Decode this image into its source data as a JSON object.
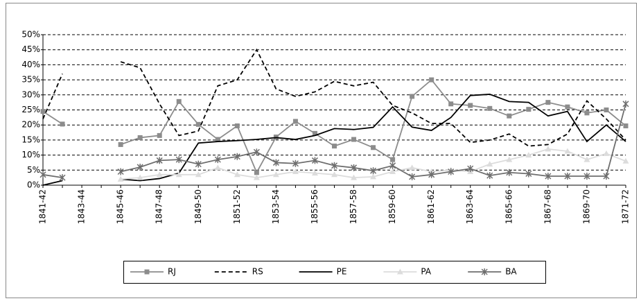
{
  "chart_data": {
    "type": "line",
    "categories": [
      "1841-42",
      null,
      "1843-44",
      null,
      "1845-46",
      null,
      "1847-48",
      null,
      "1849-50",
      null,
      "1851-52",
      null,
      "1853-54",
      null,
      "1855-56",
      null,
      "1857-58",
      null,
      "1859-60",
      null,
      "1861-62",
      null,
      "1863-64",
      null,
      "1865-66",
      null,
      "1867-68",
      null,
      "1869-70",
      null,
      "1871-72"
    ],
    "ylim": [
      0,
      50
    ],
    "yticks": [
      {
        "value": 0,
        "label": "0%"
      },
      {
        "value": 5,
        "label": "5%"
      },
      {
        "value": 10,
        "label": "10%"
      },
      {
        "value": 15,
        "label": "15%"
      },
      {
        "value": 20,
        "label": "20%"
      },
      {
        "value": 25,
        "label": "25%"
      },
      {
        "value": 30,
        "label": "30%"
      },
      {
        "value": 35,
        "label": "35%"
      },
      {
        "value": 40,
        "label": "40%"
      },
      {
        "value": 45,
        "label": "45%"
      },
      {
        "value": 50,
        "label": "50%"
      }
    ],
    "grid": true,
    "legend": "bottom",
    "series": [
      {
        "name": "RJ",
        "color": "#8c8c8c",
        "marker": "square",
        "line_style": "solid",
        "values": [
          24.5,
          20.3,
          null,
          null,
          13.5,
          15.8,
          16.5,
          27.8,
          20.2,
          15.2,
          19.7,
          4.2,
          16.0,
          21.2,
          17.2,
          13.0,
          15.2,
          12.5,
          8.5,
          29.5,
          35.0,
          27.0,
          26.5,
          25.5,
          23.0,
          25.2,
          27.5,
          26.0,
          24.0,
          25.0,
          19.7
        ]
      },
      {
        "name": "RS",
        "color": "#000000",
        "marker": "none",
        "line_style": "dashed",
        "values": [
          22.0,
          37.0,
          null,
          null,
          41.0,
          39.0,
          27.0,
          16.5,
          18.0,
          33.0,
          35.0,
          45.0,
          32.0,
          29.5,
          31.0,
          34.5,
          33.0,
          34.2,
          26.5,
          24.0,
          20.5,
          20.5,
          14.2,
          15.0,
          17.0,
          13.0,
          13.5,
          17.0,
          28.0,
          22.0,
          15.0
        ]
      },
      {
        "name": "PE",
        "color": "#000000",
        "marker": "none",
        "line_style": "solid",
        "values": [
          0.0,
          1.5,
          null,
          null,
          2.0,
          1.5,
          2.2,
          4.0,
          14.0,
          14.5,
          14.8,
          15.2,
          15.8,
          15.2,
          16.5,
          18.8,
          18.5,
          19.2,
          26.0,
          19.3,
          18.2,
          22.5,
          29.8,
          30.2,
          27.8,
          27.5,
          23.0,
          24.5,
          14.5,
          20.0,
          14.5
        ]
      },
      {
        "name": "PA",
        "color": "#dcdcdc",
        "marker": "triangle",
        "line_style": "solid",
        "values": [
          null,
          null,
          null,
          null,
          2.0,
          2.5,
          3.5,
          3.5,
          3.5,
          5.8,
          3.5,
          2.5,
          3.5,
          4.5,
          4.0,
          3.5,
          2.5,
          2.8,
          4.5,
          5.8,
          4.5,
          5.0,
          4.5,
          7.0,
          8.5,
          10.0,
          12.0,
          11.3,
          8.5,
          10.5,
          8.0
        ]
      },
      {
        "name": "BA",
        "color": "#6e6e6e",
        "marker": "asterisk",
        "line_style": "solid",
        "values": [
          3.5,
          2.5,
          null,
          null,
          4.5,
          6.0,
          8.2,
          8.5,
          7.0,
          8.5,
          9.5,
          11.0,
          7.5,
          7.2,
          8.2,
          6.5,
          5.8,
          4.8,
          6.5,
          2.8,
          3.5,
          4.5,
          5.5,
          3.2,
          4.2,
          3.8,
          3.0,
          3.0,
          3.0,
          3.0,
          27.0
        ]
      }
    ]
  }
}
